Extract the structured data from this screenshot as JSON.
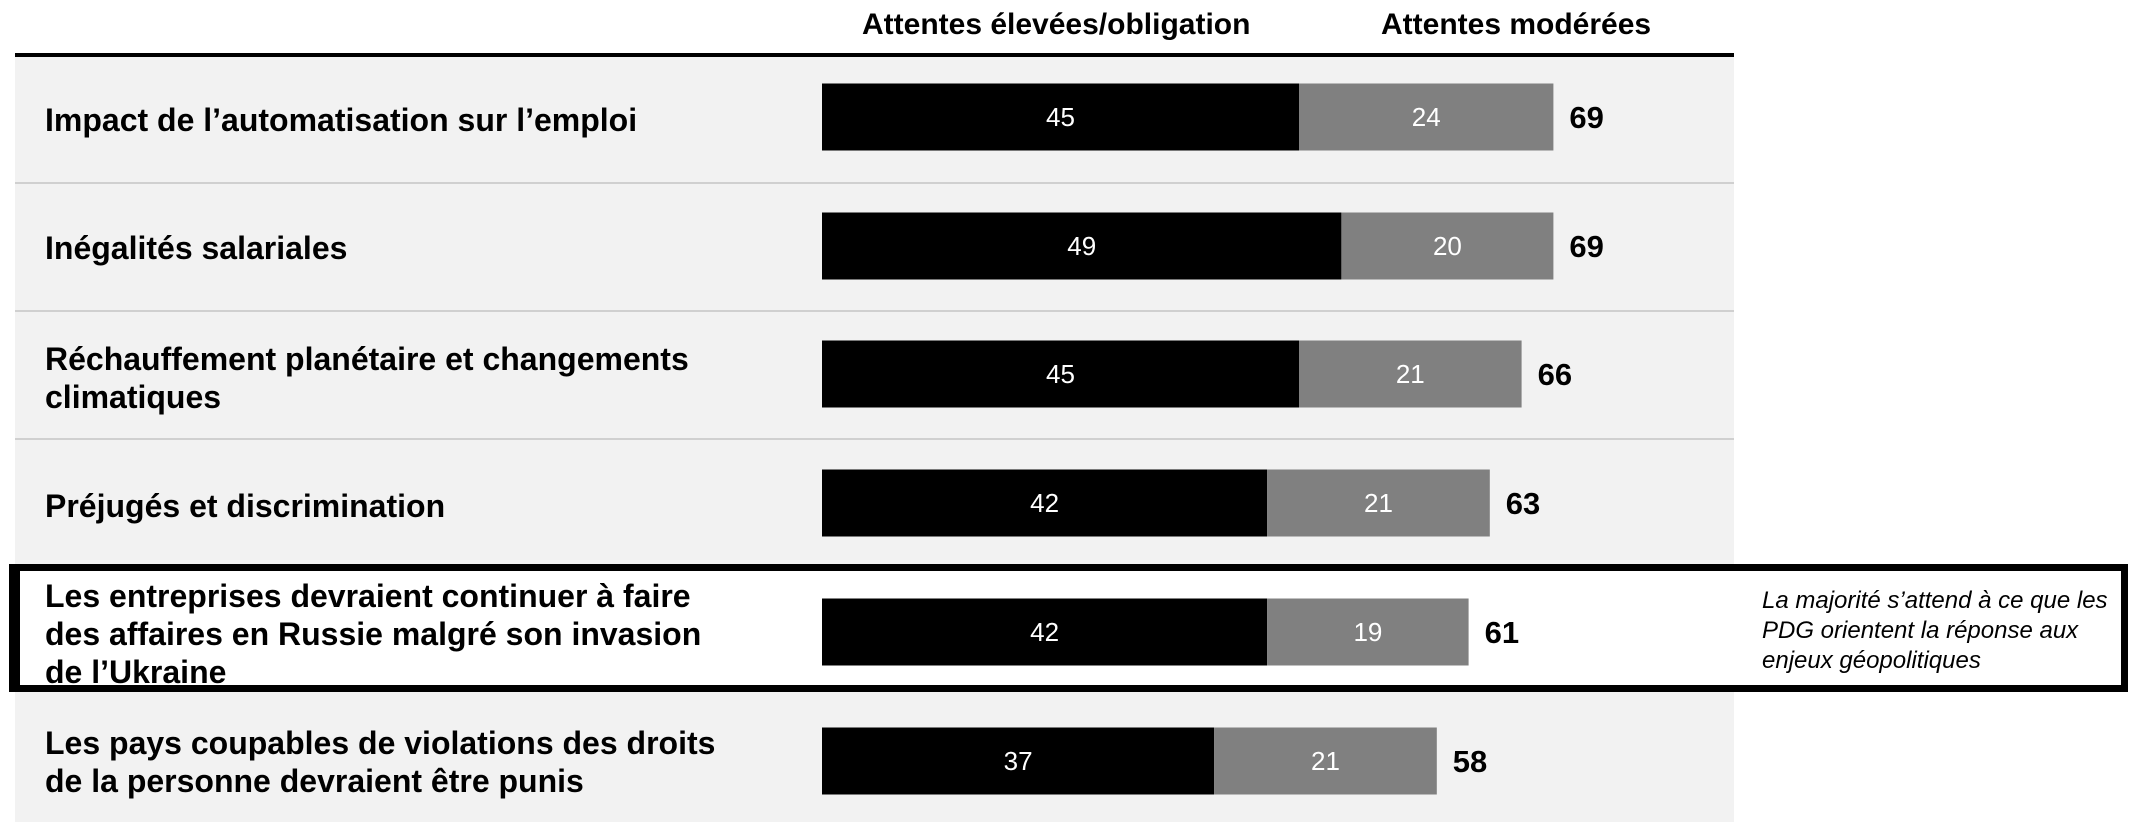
{
  "chart_data": {
    "type": "bar",
    "orientation": "horizontal",
    "stacked": true,
    "categories": [
      "Impact de l’automatisation sur l’emploi",
      "Inégalités salariales",
      "Réchauffement planétaire et changements climatiques",
      "Préjugés et discrimination",
      "Les entreprises devraient continuer à faire des affaires en Russie malgré son invasion de l’Ukraine",
      "Les pays coupables de violations des droits de la personne devraient être punis"
    ],
    "series": [
      {
        "name": "Attentes élevées/obligation",
        "color": "#000000",
        "values": [
          45,
          49,
          45,
          42,
          42,
          37
        ]
      },
      {
        "name": "Attentes modérées",
        "color": "#808080",
        "values": [
          24,
          20,
          21,
          21,
          19,
          21
        ]
      }
    ],
    "totals": [
      69,
      69,
      66,
      63,
      61,
      58
    ],
    "highlighted_category_index": 4,
    "annotation": "La majorité s’attend à ce que les PDG orientent la réponse aux enjeux géopolitiques",
    "legend_position": "top",
    "grid": false
  }
}
